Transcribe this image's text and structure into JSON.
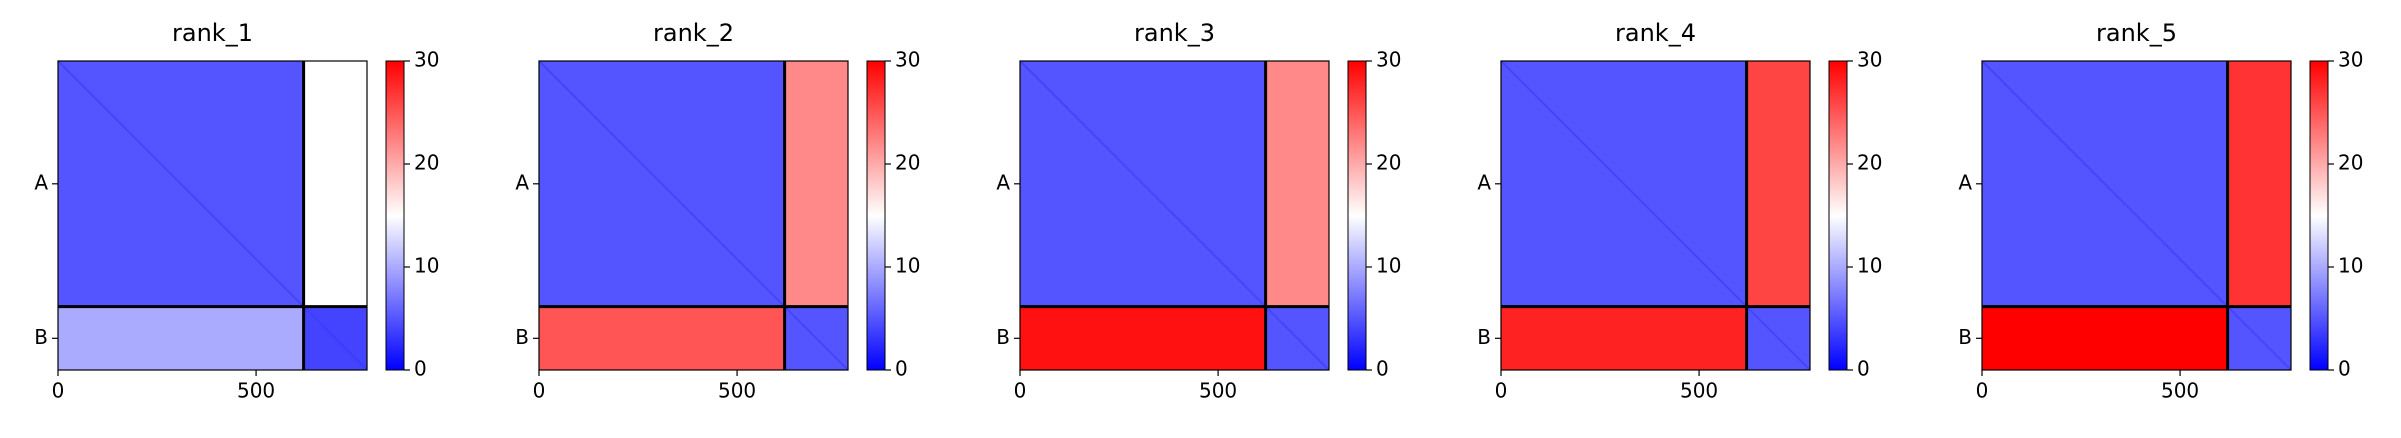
{
  "chart_data": [
    {
      "type": "heatmap",
      "title": "rank_1",
      "x": [
        0,
        620,
        780
      ],
      "y": [
        0,
        620,
        780
      ],
      "values": [
        [
          5,
          15
        ],
        [
          10,
          4
        ]
      ],
      "xlim": [
        0,
        780
      ],
      "ylim": [
        0,
        780
      ],
      "xticks": [
        0,
        500
      ],
      "yticks": [
        {
          "value": 310,
          "label": "A"
        },
        {
          "value": 700,
          "label": "B"
        }
      ],
      "clim": [
        0,
        30
      ],
      "cticks": [
        0,
        10,
        20,
        30
      ],
      "colormap": "bwr"
    },
    {
      "type": "heatmap",
      "title": "rank_2",
      "x": [
        0,
        620,
        780
      ],
      "y": [
        0,
        620,
        780
      ],
      "values": [
        [
          5,
          22
        ],
        [
          25,
          5
        ]
      ],
      "xlim": [
        0,
        780
      ],
      "ylim": [
        0,
        780
      ],
      "xticks": [
        0,
        500
      ],
      "yticks": [
        {
          "value": 310,
          "label": "A"
        },
        {
          "value": 700,
          "label": "B"
        }
      ],
      "clim": [
        0,
        30
      ],
      "cticks": [
        0,
        10,
        20,
        30
      ],
      "colormap": "bwr"
    },
    {
      "type": "heatmap",
      "title": "rank_3",
      "x": [
        0,
        620,
        780
      ],
      "y": [
        0,
        620,
        780
      ],
      "values": [
        [
          5,
          22
        ],
        [
          29,
          5
        ]
      ],
      "xlim": [
        0,
        780
      ],
      "ylim": [
        0,
        780
      ],
      "xticks": [
        0,
        500
      ],
      "yticks": [
        {
          "value": 310,
          "label": "A"
        },
        {
          "value": 700,
          "label": "B"
        }
      ],
      "clim": [
        0,
        30
      ],
      "cticks": [
        0,
        10,
        20,
        30
      ],
      "colormap": "bwr"
    },
    {
      "type": "heatmap",
      "title": "rank_4",
      "x": [
        0,
        620,
        780
      ],
      "y": [
        0,
        620,
        780
      ],
      "values": [
        [
          5,
          26
        ],
        [
          28,
          5
        ]
      ],
      "xlim": [
        0,
        780
      ],
      "ylim": [
        0,
        780
      ],
      "xticks": [
        0,
        500
      ],
      "yticks": [
        {
          "value": 310,
          "label": "A"
        },
        {
          "value": 700,
          "label": "B"
        }
      ],
      "clim": [
        0,
        30
      ],
      "cticks": [
        0,
        10,
        20,
        30
      ],
      "colormap": "bwr"
    },
    {
      "type": "heatmap",
      "title": "rank_5",
      "x": [
        0,
        620,
        780
      ],
      "y": [
        0,
        620,
        780
      ],
      "values": [
        [
          5,
          27
        ],
        [
          30,
          5
        ]
      ],
      "xlim": [
        0,
        780
      ],
      "ylim": [
        0,
        780
      ],
      "xticks": [
        0,
        500
      ],
      "yticks": [
        {
          "value": 310,
          "label": "A"
        },
        {
          "value": 700,
          "label": "B"
        }
      ],
      "clim": [
        0,
        30
      ],
      "cticks": [
        0,
        10,
        20,
        30
      ],
      "colormap": "bwr"
    }
  ]
}
